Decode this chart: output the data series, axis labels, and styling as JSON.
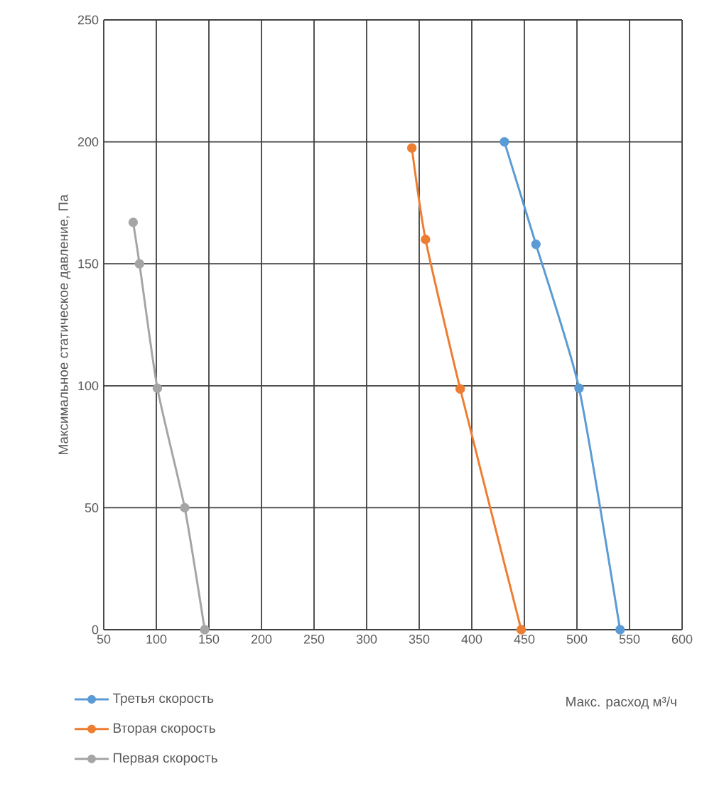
{
  "chart_data": {
    "type": "line",
    "xlabel": "Макс. расход м³/ч",
    "ylabel": "Максимальное статическое давление, Па",
    "xlim": [
      50,
      600
    ],
    "xticks": [
      50,
      100,
      150,
      200,
      250,
      300,
      350,
      400,
      450,
      500,
      550,
      600
    ],
    "ylim": [
      0,
      250
    ],
    "yticks": [
      0,
      50,
      100,
      150,
      200,
      250
    ],
    "grid": true,
    "legend": "bottom left",
    "marker": "circle",
    "line_style": "solid",
    "series": [
      {
        "name": "Третья скорость",
        "color": "#5b9bd5",
        "x": [
          431,
          461,
          502,
          541
        ],
        "values": [
          200,
          158,
          99,
          0
        ]
      },
      {
        "name": "Вторая скорость",
        "color": "#ed7d31",
        "x": [
          343,
          356,
          389,
          447
        ],
        "values": [
          197.5,
          160,
          98.7,
          0
        ]
      },
      {
        "name": "Первая скорость",
        "color": "#a5a5a5",
        "x": [
          78,
          84,
          101,
          127,
          146
        ],
        "values": [
          167,
          150,
          99,
          50,
          0
        ]
      }
    ]
  }
}
